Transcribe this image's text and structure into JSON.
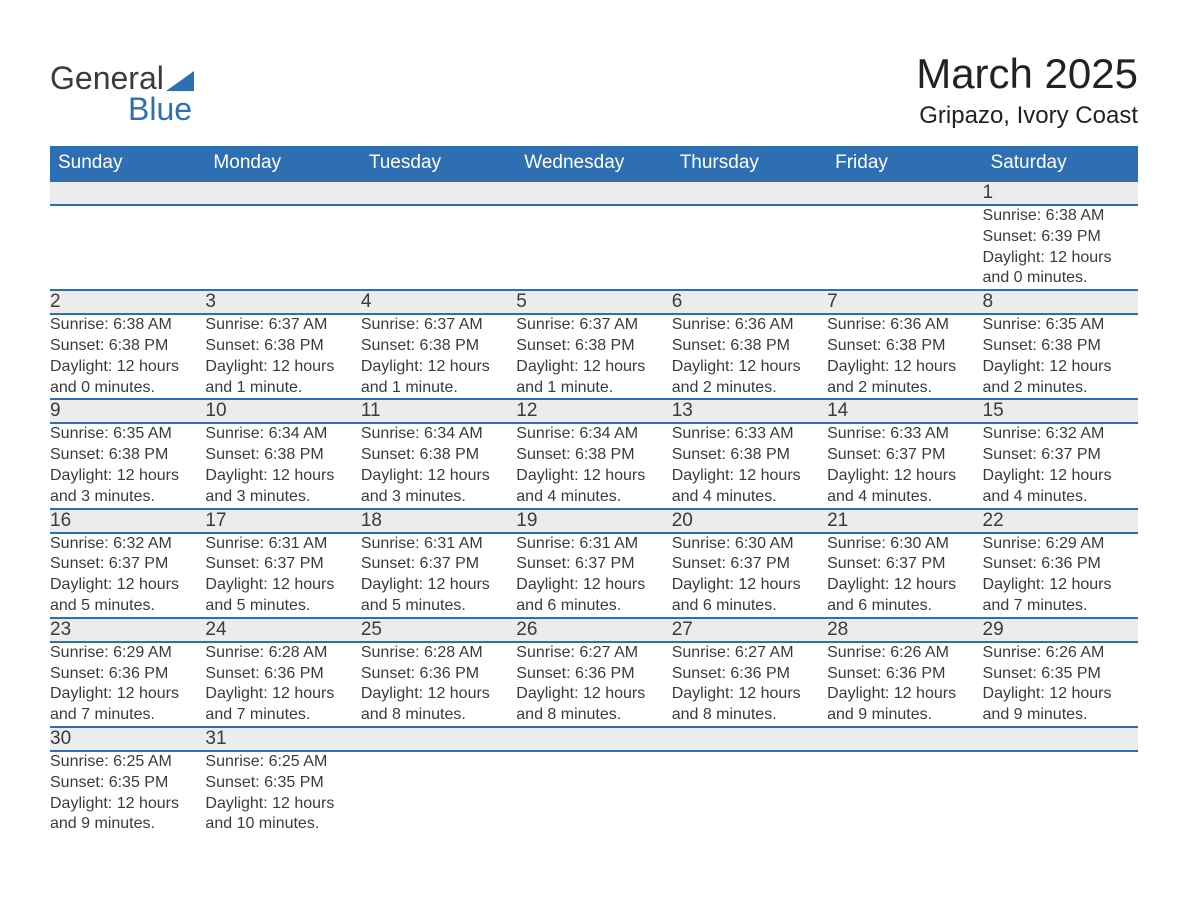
{
  "logo": {
    "word1": "General",
    "word2": "Blue"
  },
  "title": "March 2025",
  "location": "Gripazo, Ivory Coast",
  "colors": {
    "header_bg": "#2e6fb4",
    "header_text": "#ffffff",
    "daynum_bg": "#ececec",
    "row_divider": "#2e6fb4",
    "body_text": "#3b3b3b",
    "logo_accent": "#2e6fb4",
    "page_bg": "#ffffff"
  },
  "typography": {
    "title_fontsize": 42,
    "location_fontsize": 24,
    "dayheader_fontsize": 19,
    "daynum_fontsize": 19,
    "detail_fontsize": 16,
    "font_family": "Arial"
  },
  "day_headers": [
    "Sunday",
    "Monday",
    "Tuesday",
    "Wednesday",
    "Thursday",
    "Friday",
    "Saturday"
  ],
  "weeks": [
    [
      null,
      null,
      null,
      null,
      null,
      null,
      {
        "n": "1",
        "sunrise": "Sunrise: 6:38 AM",
        "sunset": "Sunset: 6:39 PM",
        "day": "Daylight: 12 hours and 0 minutes."
      }
    ],
    [
      {
        "n": "2",
        "sunrise": "Sunrise: 6:38 AM",
        "sunset": "Sunset: 6:38 PM",
        "day": "Daylight: 12 hours and 0 minutes."
      },
      {
        "n": "3",
        "sunrise": "Sunrise: 6:37 AM",
        "sunset": "Sunset: 6:38 PM",
        "day": "Daylight: 12 hours and 1 minute."
      },
      {
        "n": "4",
        "sunrise": "Sunrise: 6:37 AM",
        "sunset": "Sunset: 6:38 PM",
        "day": "Daylight: 12 hours and 1 minute."
      },
      {
        "n": "5",
        "sunrise": "Sunrise: 6:37 AM",
        "sunset": "Sunset: 6:38 PM",
        "day": "Daylight: 12 hours and 1 minute."
      },
      {
        "n": "6",
        "sunrise": "Sunrise: 6:36 AM",
        "sunset": "Sunset: 6:38 PM",
        "day": "Daylight: 12 hours and 2 minutes."
      },
      {
        "n": "7",
        "sunrise": "Sunrise: 6:36 AM",
        "sunset": "Sunset: 6:38 PM",
        "day": "Daylight: 12 hours and 2 minutes."
      },
      {
        "n": "8",
        "sunrise": "Sunrise: 6:35 AM",
        "sunset": "Sunset: 6:38 PM",
        "day": "Daylight: 12 hours and 2 minutes."
      }
    ],
    [
      {
        "n": "9",
        "sunrise": "Sunrise: 6:35 AM",
        "sunset": "Sunset: 6:38 PM",
        "day": "Daylight: 12 hours and 3 minutes."
      },
      {
        "n": "10",
        "sunrise": "Sunrise: 6:34 AM",
        "sunset": "Sunset: 6:38 PM",
        "day": "Daylight: 12 hours and 3 minutes."
      },
      {
        "n": "11",
        "sunrise": "Sunrise: 6:34 AM",
        "sunset": "Sunset: 6:38 PM",
        "day": "Daylight: 12 hours and 3 minutes."
      },
      {
        "n": "12",
        "sunrise": "Sunrise: 6:34 AM",
        "sunset": "Sunset: 6:38 PM",
        "day": "Daylight: 12 hours and 4 minutes."
      },
      {
        "n": "13",
        "sunrise": "Sunrise: 6:33 AM",
        "sunset": "Sunset: 6:38 PM",
        "day": "Daylight: 12 hours and 4 minutes."
      },
      {
        "n": "14",
        "sunrise": "Sunrise: 6:33 AM",
        "sunset": "Sunset: 6:37 PM",
        "day": "Daylight: 12 hours and 4 minutes."
      },
      {
        "n": "15",
        "sunrise": "Sunrise: 6:32 AM",
        "sunset": "Sunset: 6:37 PM",
        "day": "Daylight: 12 hours and 4 minutes."
      }
    ],
    [
      {
        "n": "16",
        "sunrise": "Sunrise: 6:32 AM",
        "sunset": "Sunset: 6:37 PM",
        "day": "Daylight: 12 hours and 5 minutes."
      },
      {
        "n": "17",
        "sunrise": "Sunrise: 6:31 AM",
        "sunset": "Sunset: 6:37 PM",
        "day": "Daylight: 12 hours and 5 minutes."
      },
      {
        "n": "18",
        "sunrise": "Sunrise: 6:31 AM",
        "sunset": "Sunset: 6:37 PM",
        "day": "Daylight: 12 hours and 5 minutes."
      },
      {
        "n": "19",
        "sunrise": "Sunrise: 6:31 AM",
        "sunset": "Sunset: 6:37 PM",
        "day": "Daylight: 12 hours and 6 minutes."
      },
      {
        "n": "20",
        "sunrise": "Sunrise: 6:30 AM",
        "sunset": "Sunset: 6:37 PM",
        "day": "Daylight: 12 hours and 6 minutes."
      },
      {
        "n": "21",
        "sunrise": "Sunrise: 6:30 AM",
        "sunset": "Sunset: 6:37 PM",
        "day": "Daylight: 12 hours and 6 minutes."
      },
      {
        "n": "22",
        "sunrise": "Sunrise: 6:29 AM",
        "sunset": "Sunset: 6:36 PM",
        "day": "Daylight: 12 hours and 7 minutes."
      }
    ],
    [
      {
        "n": "23",
        "sunrise": "Sunrise: 6:29 AM",
        "sunset": "Sunset: 6:36 PM",
        "day": "Daylight: 12 hours and 7 minutes."
      },
      {
        "n": "24",
        "sunrise": "Sunrise: 6:28 AM",
        "sunset": "Sunset: 6:36 PM",
        "day": "Daylight: 12 hours and 7 minutes."
      },
      {
        "n": "25",
        "sunrise": "Sunrise: 6:28 AM",
        "sunset": "Sunset: 6:36 PM",
        "day": "Daylight: 12 hours and 8 minutes."
      },
      {
        "n": "26",
        "sunrise": "Sunrise: 6:27 AM",
        "sunset": "Sunset: 6:36 PM",
        "day": "Daylight: 12 hours and 8 minutes."
      },
      {
        "n": "27",
        "sunrise": "Sunrise: 6:27 AM",
        "sunset": "Sunset: 6:36 PM",
        "day": "Daylight: 12 hours and 8 minutes."
      },
      {
        "n": "28",
        "sunrise": "Sunrise: 6:26 AM",
        "sunset": "Sunset: 6:36 PM",
        "day": "Daylight: 12 hours and 9 minutes."
      },
      {
        "n": "29",
        "sunrise": "Sunrise: 6:26 AM",
        "sunset": "Sunset: 6:35 PM",
        "day": "Daylight: 12 hours and 9 minutes."
      }
    ],
    [
      {
        "n": "30",
        "sunrise": "Sunrise: 6:25 AM",
        "sunset": "Sunset: 6:35 PM",
        "day": "Daylight: 12 hours and 9 minutes."
      },
      {
        "n": "31",
        "sunrise": "Sunrise: 6:25 AM",
        "sunset": "Sunset: 6:35 PM",
        "day": "Daylight: 12 hours and 10 minutes."
      },
      null,
      null,
      null,
      null,
      null
    ]
  ]
}
